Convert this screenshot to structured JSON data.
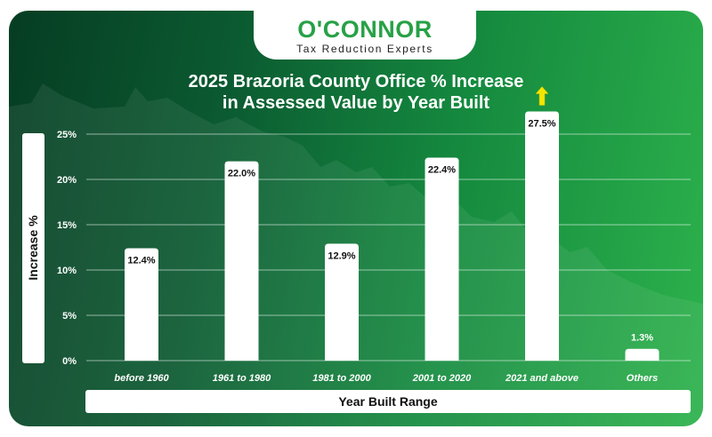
{
  "brand": {
    "name": "O'CONNOR",
    "tagline": "Tax Reduction Experts"
  },
  "colors": {
    "bar": "#ffffff",
    "arrow": "#f2e600",
    "text": "#ffffff",
    "logo_green": "#27a146"
  },
  "chart_data": {
    "type": "bar",
    "title_line1": "2025 Brazoria County Office % Increase",
    "title_line2": "in Assessed Value by Year Built",
    "xlabel": "Year Built Range",
    "ylabel": "Increase %",
    "categories": [
      "before 1960",
      "1961 to 1980",
      "1981 to 2000",
      "2001 to 2020",
      "2021 and above",
      "Others"
    ],
    "values": [
      12.4,
      22.0,
      12.9,
      22.4,
      27.5,
      1.3
    ],
    "value_labels": [
      "12.4%",
      "22.0%",
      "12.9%",
      "22.4%",
      "27.5%",
      "1.3%"
    ],
    "yticks": [
      0,
      5,
      10,
      15,
      20,
      25
    ],
    "ytick_labels": [
      "0%",
      "5%",
      "10%",
      "15%",
      "20%",
      "25%"
    ],
    "ylim": [
      0,
      25
    ],
    "grid": true,
    "highlight_category": "2021 and above"
  }
}
